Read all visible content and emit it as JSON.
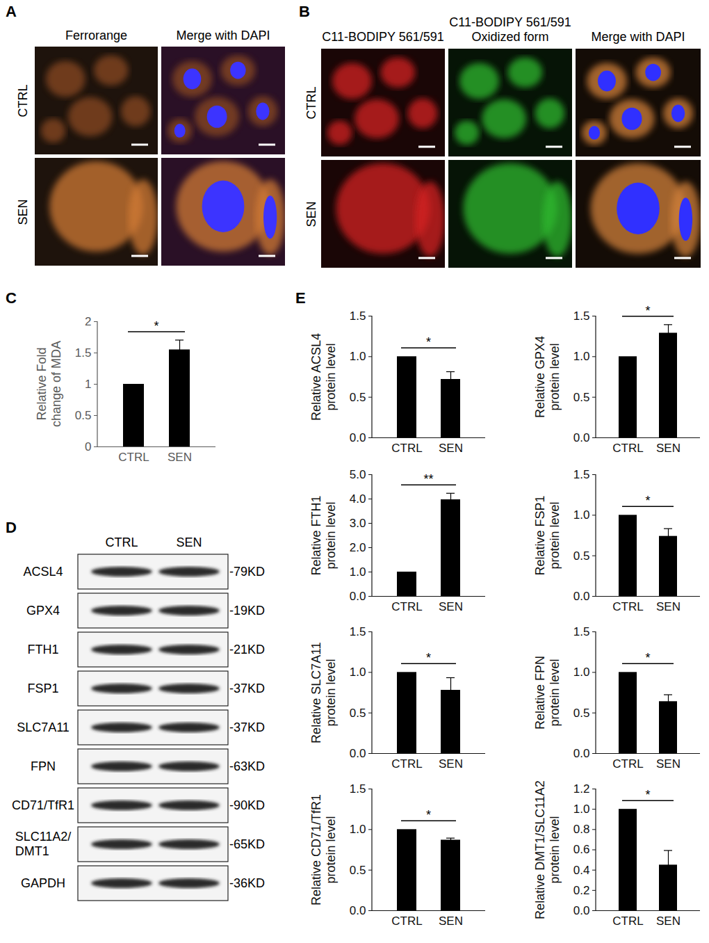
{
  "panel_labels": [
    "A",
    "B",
    "C",
    "D",
    "E"
  ],
  "images": {
    "A": {
      "columns": [
        "Ferrorange",
        "Merge with DAPI"
      ],
      "rows": [
        "CTRL",
        "SEN"
      ]
    },
    "B": {
      "columns": [
        "C11-BODIPY 561/591",
        "C11-BODIPY 561/591\nOxidized form",
        "Merge with DAPI"
      ],
      "rows": [
        "CTRL",
        "SEN"
      ]
    }
  },
  "blot": {
    "lanes": [
      "CTRL",
      "SEN"
    ],
    "rows": [
      {
        "protein": "ACSL4",
        "size": "-79KD"
      },
      {
        "protein": "GPX4",
        "size": "-19KD"
      },
      {
        "protein": "FTH1",
        "size": "-21KD"
      },
      {
        "protein": "FSP1",
        "size": "-37KD"
      },
      {
        "protein": "SLC7A11",
        "size": "-37KD"
      },
      {
        "protein": "FPN",
        "size": "-63KD"
      },
      {
        "protein": "CD71/TfR1",
        "size": "-90KD"
      },
      {
        "protein": "SLC11A2/\nDMT1",
        "size": "-65KD"
      },
      {
        "protein": "GAPDH",
        "size": "-36KD"
      }
    ]
  },
  "chart_data": [
    {
      "type": "bar",
      "y_label": "Relative Fold\nchange of MDA",
      "categories": [
        "CTRL",
        "SEN"
      ],
      "values": [
        1,
        1.55
      ],
      "errors": [
        0,
        0.15
      ],
      "significance": "*",
      "color": "#000000",
      "ylim": [
        0,
        2
      ],
      "yticks": [
        0,
        0.5,
        1,
        1.5,
        2
      ]
    },
    {
      "type": "bar",
      "y_label": "Relative ACSL4\nprotein level",
      "categories": [
        "CTRL",
        "SEN"
      ],
      "values": [
        1,
        0.72
      ],
      "errors": [
        0,
        0.09
      ],
      "significance": "*",
      "color": "#000000",
      "ylim": [
        0,
        1.5
      ],
      "yticks": [
        {
          "value": 0,
          "label": "0.0"
        },
        {
          "value": 0.5,
          "label": "0.5"
        },
        {
          "value": 1,
          "label": "1.0"
        },
        {
          "value": 1.5,
          "label": "1.5"
        }
      ]
    },
    {
      "type": "bar",
      "y_label": "Relative GPX4\nprotein level",
      "categories": [
        "CTRL",
        "SEN"
      ],
      "values": [
        1,
        1.29
      ],
      "errors": [
        0,
        0.1
      ],
      "significance": "*",
      "color": "#000000",
      "ylim": [
        0,
        1.5
      ],
      "yticks": [
        {
          "value": 0,
          "label": "0.0"
        },
        {
          "value": 0.5,
          "label": "0.5"
        },
        {
          "value": 1,
          "label": "1.0"
        },
        {
          "value": 1.5,
          "label": "1.5"
        }
      ]
    },
    {
      "type": "bar",
      "y_label": "Relative FTH1\nprotein level",
      "categories": [
        "CTRL",
        "SEN"
      ],
      "values": [
        1,
        3.97
      ],
      "errors": [
        0,
        0.25
      ],
      "significance": "**",
      "color": "#000000",
      "ylim": [
        0,
        5
      ],
      "yticks": [
        {
          "value": 0,
          "label": "0.0"
        },
        {
          "value": 1,
          "label": "1.0"
        },
        {
          "value": 2,
          "label": "2.0"
        },
        {
          "value": 3,
          "label": "3.0"
        },
        {
          "value": 4,
          "label": "4.0"
        },
        {
          "value": 5,
          "label": "5.0"
        }
      ]
    },
    {
      "type": "bar",
      "y_label": "Relative FSP1\nprotein level",
      "categories": [
        "CTRL",
        "SEN"
      ],
      "values": [
        1,
        0.74
      ],
      "errors": [
        0,
        0.09
      ],
      "significance": "*",
      "color": "#000000",
      "ylim": [
        0,
        1.5
      ],
      "yticks": [
        {
          "value": 0,
          "label": "0.0"
        },
        {
          "value": 0.5,
          "label": "0.5"
        },
        {
          "value": 1,
          "label": "1.0"
        },
        {
          "value": 1.5,
          "label": "1.5"
        }
      ]
    },
    {
      "type": "bar",
      "y_label": "Relative SLC7A11\nprotein level",
      "categories": [
        "CTRL",
        "SEN"
      ],
      "values": [
        1,
        0.78
      ],
      "errors": [
        0,
        0.15
      ],
      "significance": "*",
      "color": "#000000",
      "ylim": [
        0,
        1.5
      ],
      "yticks": [
        {
          "value": 0,
          "label": "0.0"
        },
        {
          "value": 0.5,
          "label": "0.5"
        },
        {
          "value": 1,
          "label": "1.0"
        },
        {
          "value": 1.5,
          "label": "1.5"
        }
      ]
    },
    {
      "type": "bar",
      "y_label": "Relative FPN\nprotein level",
      "categories": [
        "CTRL",
        "SEN"
      ],
      "values": [
        1,
        0.64
      ],
      "errors": [
        0,
        0.08
      ],
      "significance": "*",
      "color": "#000000",
      "ylim": [
        0,
        1.5
      ],
      "yticks": [
        {
          "value": 0,
          "label": "0.0"
        },
        {
          "value": 0.5,
          "label": "0.5"
        },
        {
          "value": 1,
          "label": "1.0"
        },
        {
          "value": 1.5,
          "label": "1.5"
        }
      ]
    },
    {
      "type": "bar",
      "y_label": "Relative CD71/TfR1\nprotein level",
      "categories": [
        "CTRL",
        "SEN"
      ],
      "values": [
        1,
        0.87
      ],
      "errors": [
        0,
        0.02
      ],
      "significance": "*",
      "color": "#000000",
      "ylim": [
        0,
        1.5
      ],
      "yticks": [
        {
          "value": 0,
          "label": "0.0"
        },
        {
          "value": 0.5,
          "label": "0.5"
        },
        {
          "value": 1,
          "label": "1.0"
        },
        {
          "value": 1.5,
          "label": "1.5"
        }
      ]
    },
    {
      "type": "bar",
      "y_label": "Relative DMT1/SLC11A2\nprotein level",
      "categories": [
        "CTRL",
        "SEN"
      ],
      "values": [
        1,
        0.45
      ],
      "errors": [
        0,
        0.14
      ],
      "significance": "*",
      "color": "#000000",
      "ylim": [
        0,
        1.2
      ],
      "yticks": [
        {
          "value": 0,
          "label": "0.0"
        },
        {
          "value": 0.2,
          "label": "0.2"
        },
        {
          "value": 0.4,
          "label": "0.4"
        },
        {
          "value": 0.6,
          "label": "0.6"
        },
        {
          "value": 0.8,
          "label": "0.8"
        },
        {
          "value": 1,
          "label": "1.0"
        },
        {
          "value": 1.2,
          "label": "1.2"
        }
      ]
    }
  ]
}
